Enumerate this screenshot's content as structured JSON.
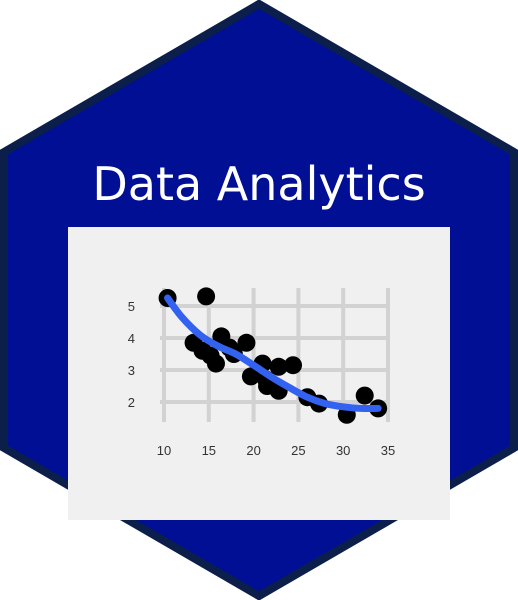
{
  "title": "Data Analytics",
  "colors": {
    "hex_fill": "#000f94",
    "hex_border": "#0b1f4a",
    "panel_bg": "#f0f0f0",
    "grid": "#d2d2d2",
    "points": "#000000",
    "trend": "#3462f0",
    "title_text": "#ffffff"
  },
  "chart_data": {
    "type": "scatter",
    "title": "",
    "xlabel": "",
    "ylabel": "",
    "xlim": [
      10,
      35
    ],
    "ylim": [
      1.5,
      5.5
    ],
    "grid": true,
    "x_ticks": [
      10,
      15,
      20,
      25,
      30,
      35
    ],
    "y_ticks": [
      2,
      3,
      4,
      5
    ],
    "points": [
      {
        "x": 10.4,
        "y": 5.25
      },
      {
        "x": 14.7,
        "y": 5.3
      },
      {
        "x": 13.3,
        "y": 3.85
      },
      {
        "x": 14.3,
        "y": 3.6
      },
      {
        "x": 15.2,
        "y": 3.45
      },
      {
        "x": 15.8,
        "y": 3.2
      },
      {
        "x": 16.4,
        "y": 4.05
      },
      {
        "x": 17.3,
        "y": 3.7
      },
      {
        "x": 17.8,
        "y": 3.5
      },
      {
        "x": 19.2,
        "y": 3.85
      },
      {
        "x": 19.7,
        "y": 2.8
      },
      {
        "x": 21.0,
        "y": 3.2
      },
      {
        "x": 21.4,
        "y": 2.7
      },
      {
        "x": 21.5,
        "y": 2.5
      },
      {
        "x": 22.8,
        "y": 2.35
      },
      {
        "x": 22.8,
        "y": 3.1
      },
      {
        "x": 24.4,
        "y": 3.15
      },
      {
        "x": 26.0,
        "y": 2.15
      },
      {
        "x": 27.3,
        "y": 1.95
      },
      {
        "x": 30.4,
        "y": 1.6
      },
      {
        "x": 32.4,
        "y": 2.2
      },
      {
        "x": 33.9,
        "y": 1.8
      }
    ],
    "trend_line": {
      "x": [
        10.4,
        12,
        14,
        16,
        18,
        20,
        22,
        24,
        26,
        28,
        30,
        32,
        33.9
      ],
      "y": [
        5.25,
        4.65,
        4.1,
        3.75,
        3.5,
        3.15,
        2.78,
        2.45,
        2.15,
        1.95,
        1.85,
        1.8,
        1.8
      ]
    }
  }
}
